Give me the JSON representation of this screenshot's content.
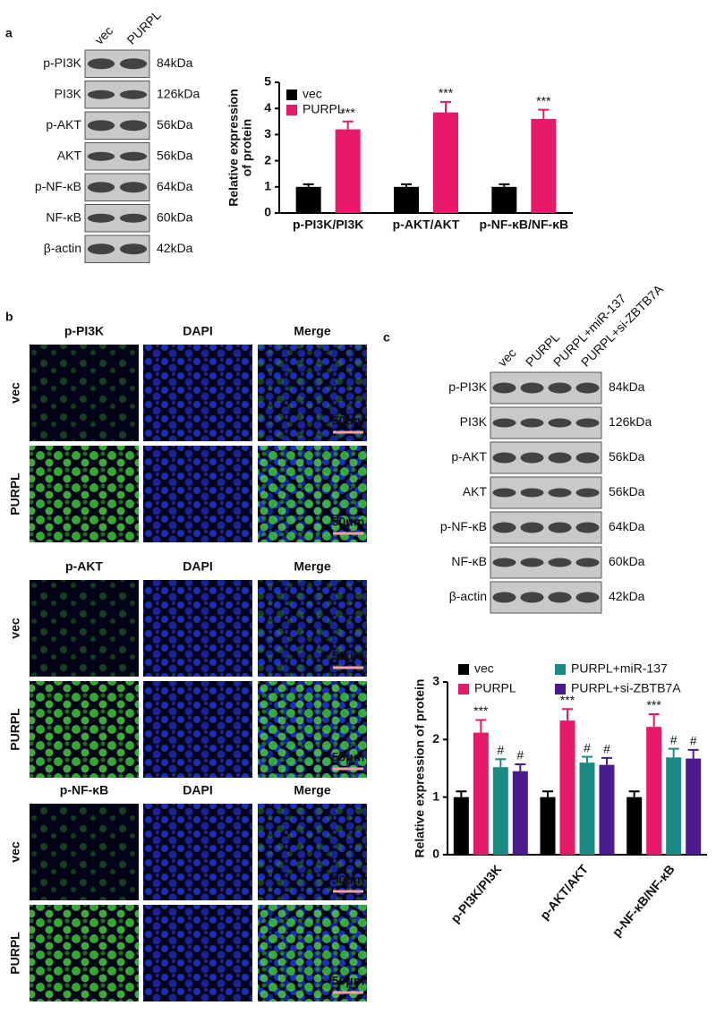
{
  "panel_a": {
    "label": "a",
    "lanes": [
      "vec",
      "PURPL"
    ],
    "blots": [
      {
        "name": "p-PI3K",
        "size": "84kDa"
      },
      {
        "name": "PI3K",
        "size": "126kDa"
      },
      {
        "name": "p-AKT",
        "size": "56kDa"
      },
      {
        "name": "AKT",
        "size": "56kDa"
      },
      {
        "name": "p-NF-κB",
        "size": "64kDa"
      },
      {
        "name": "NF-κB",
        "size": "60kDa"
      },
      {
        "name": "β-actin",
        "size": "42kDa"
      }
    ]
  },
  "panel_b": {
    "label": "b",
    "scale_bar": "50μm",
    "groups": [
      {
        "columns": [
          "p-PI3K",
          "DAPI",
          "Merge"
        ],
        "rows": [
          "vec",
          "PURPL"
        ]
      },
      {
        "columns": [
          "p-AKT",
          "DAPI",
          "Merge"
        ],
        "rows": [
          "vec",
          "PURPL"
        ]
      },
      {
        "columns": [
          "p-NF-κB",
          "DAPI",
          "Merge"
        ],
        "rows": [
          "vec",
          "PURPL"
        ]
      }
    ]
  },
  "panel_c": {
    "label": "c",
    "lanes": [
      "vec",
      "PURPL",
      "PURPL+miR-137",
      "PURPL+si-ZBTB7A"
    ],
    "blots": [
      {
        "name": "p-PI3K",
        "size": "84kDa"
      },
      {
        "name": "PI3K",
        "size": "126kDa"
      },
      {
        "name": "p-AKT",
        "size": "56kDa"
      },
      {
        "name": "AKT",
        "size": "56kDa"
      },
      {
        "name": "p-NF-κB",
        "size": "64kDa"
      },
      {
        "name": "NF-κB",
        "size": "60kDa"
      },
      {
        "name": "β-actin",
        "size": "42kDa"
      }
    ]
  },
  "chart_data": [
    {
      "type": "bar",
      "ylabel": [
        "Relative expression",
        "of protein"
      ],
      "categories": [
        "p-PI3K/PI3K",
        "p-AKT/AKT",
        "p-NF-κB/NF-κB"
      ],
      "series": [
        {
          "name": "vec",
          "color": "#000000",
          "values": [
            1,
            1,
            1
          ],
          "errors": [
            0.1,
            0.1,
            0.1
          ]
        },
        {
          "name": "PURPL",
          "color": "#e8196a",
          "values": [
            3.2,
            3.85,
            3.6
          ],
          "errors": [
            0.3,
            0.4,
            0.35
          ],
          "significance": [
            "***",
            "***",
            "***"
          ]
        }
      ],
      "ylim": [
        0,
        5
      ],
      "yticks": [
        0,
        1,
        2,
        3,
        4,
        5
      ],
      "legend": "upper-left"
    },
    {
      "type": "bar",
      "ylabel": [
        "Relative expression of protein"
      ],
      "categories": [
        "p-PI3K/PI3K",
        "p-AKT/AKT",
        "p-NF-κB/NF-κB"
      ],
      "series": [
        {
          "name": "vec",
          "color": "#000000",
          "values": [
            1,
            1,
            1
          ],
          "errors": [
            0.1,
            0.1,
            0.1
          ]
        },
        {
          "name": "PURPL",
          "color": "#e8196a",
          "values": [
            2.12,
            2.33,
            2.22
          ],
          "errors": [
            0.22,
            0.2,
            0.22
          ],
          "significance": [
            "***",
            "***",
            "***"
          ]
        },
        {
          "name": "PURPL+miR-137",
          "color": "#1a8a84",
          "values": [
            1.52,
            1.6,
            1.69
          ],
          "errors": [
            0.14,
            0.1,
            0.15
          ],
          "significance": [
            "#",
            "#",
            "#"
          ]
        },
        {
          "name": "PURPL+si-ZBTB7A",
          "color": "#4b1a8f",
          "values": [
            1.45,
            1.56,
            1.67
          ],
          "errors": [
            0.12,
            0.12,
            0.15
          ],
          "significance": [
            "#",
            "#",
            "#"
          ]
        }
      ],
      "ylim": [
        0,
        3
      ],
      "yticks": [
        0,
        1,
        2,
        3
      ],
      "legend": "top"
    }
  ]
}
